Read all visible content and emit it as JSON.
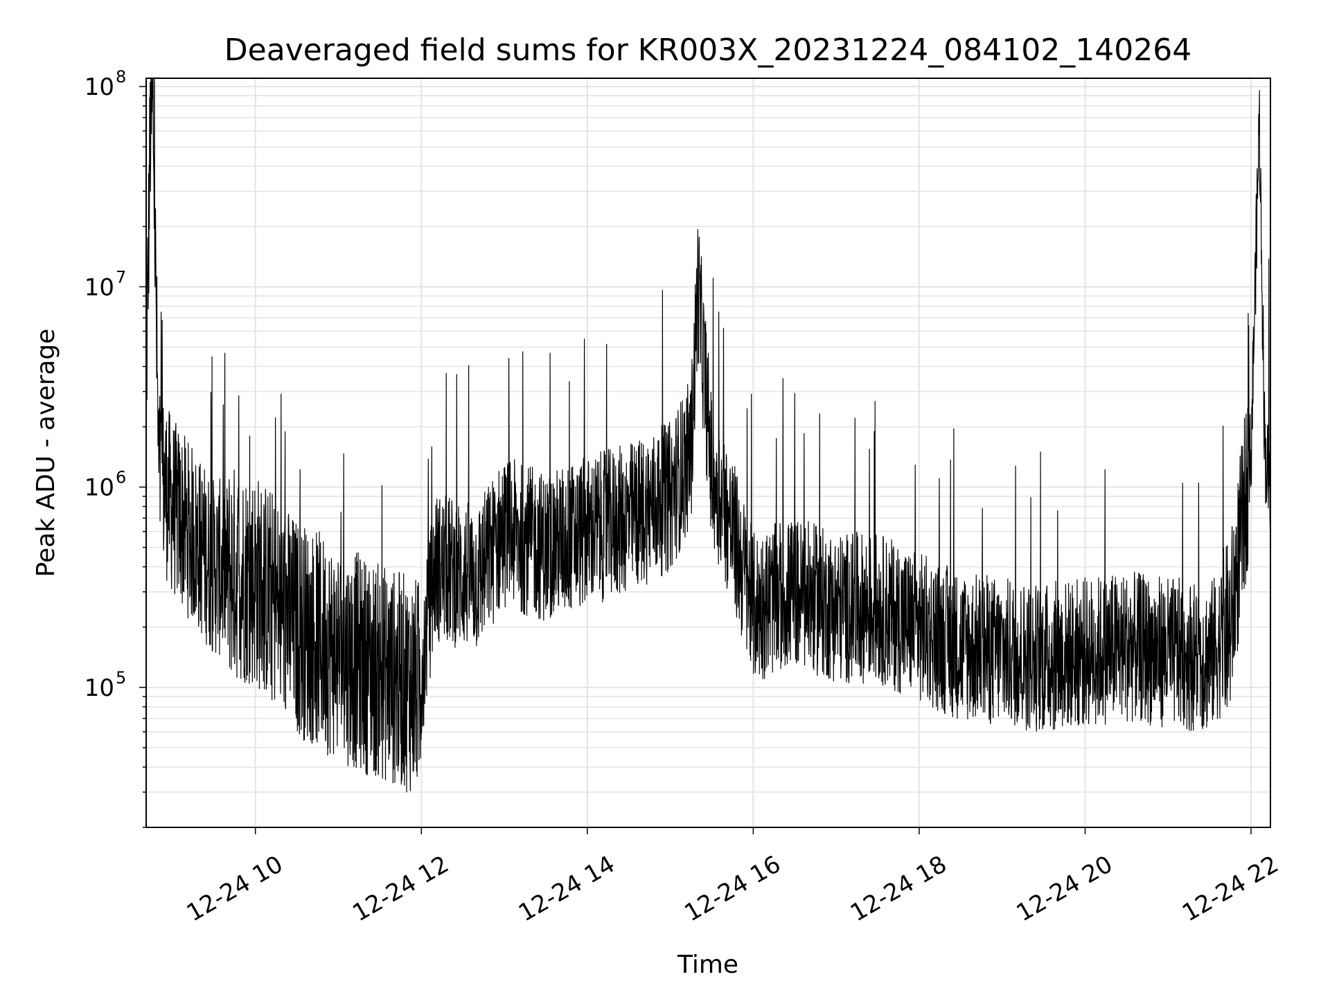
{
  "chart_data": {
    "type": "line",
    "title": "Deaveraged field sums for KR003X_20231224_084102_140264",
    "xlabel": "Time",
    "ylabel": "Peak ADU - average",
    "y_scale": "log",
    "ylim": [
      20000,
      110000000
    ],
    "xlim": [
      "2023-12-24 08:41",
      "2023-12-24 22:14"
    ],
    "x_ticks": [
      "12-24 10",
      "12-24 12",
      "12-24 14",
      "12-24 16",
      "12-24 18",
      "12-24 20",
      "12-24 22"
    ],
    "x_tick_rotation_deg": 30,
    "y_ticks": [
      {
        "value": 100000,
        "base": "10",
        "exp": "5"
      },
      {
        "value": 1000000,
        "base": "10",
        "exp": "6"
      },
      {
        "value": 10000000,
        "base": "10",
        "exp": "7"
      },
      {
        "value": 100000000,
        "base": "10",
        "exp": "8"
      }
    ],
    "grid": true,
    "line_color": "#000000",
    "series": [
      {
        "x": [
          "2023-12-24 08:41",
          "2023-12-24 08:44",
          "2023-12-24 08:46",
          "2023-12-24 08:50",
          "2023-12-24 09:00",
          "2023-12-24 09:30",
          "2023-12-24 10:00",
          "2023-12-24 10:30",
          "2023-12-24 11:00",
          "2023-12-24 11:30",
          "2023-12-24 11:58",
          "2023-12-24 12:10",
          "2023-12-24 12:40",
          "2023-12-24 13:00",
          "2023-12-24 13:30",
          "2023-12-24 14:00",
          "2023-12-24 14:30",
          "2023-12-24 15:00",
          "2023-12-24 15:15",
          "2023-12-24 15:20",
          "2023-12-24 15:30",
          "2023-12-24 15:45",
          "2023-12-24 16:00",
          "2023-12-24 16:30",
          "2023-12-24 17:00",
          "2023-12-24 17:30",
          "2023-12-24 18:00",
          "2023-12-24 18:30",
          "2023-12-24 19:00",
          "2023-12-24 19:30",
          "2023-12-24 20:00",
          "2023-12-24 20:30",
          "2023-12-24 21:00",
          "2023-12-24 21:30",
          "2023-12-24 21:45",
          "2023-12-24 22:00",
          "2023-12-24 22:06",
          "2023-12-24 22:10",
          "2023-12-24 22:14"
        ],
        "y": [
          3000000,
          60000000,
          75000000,
          1200000,
          800000,
          400000,
          350000,
          200000,
          150000,
          120000,
          100000,
          400000,
          350000,
          600000,
          500000,
          600000,
          700000,
          900000,
          1500000,
          10000000,
          1200000,
          600000,
          250000,
          300000,
          250000,
          250000,
          200000,
          160000,
          150000,
          140000,
          150000,
          160000,
          150000,
          140000,
          200000,
          1500000,
          70000000,
          1500000,
          1000000
        ]
      }
    ]
  }
}
